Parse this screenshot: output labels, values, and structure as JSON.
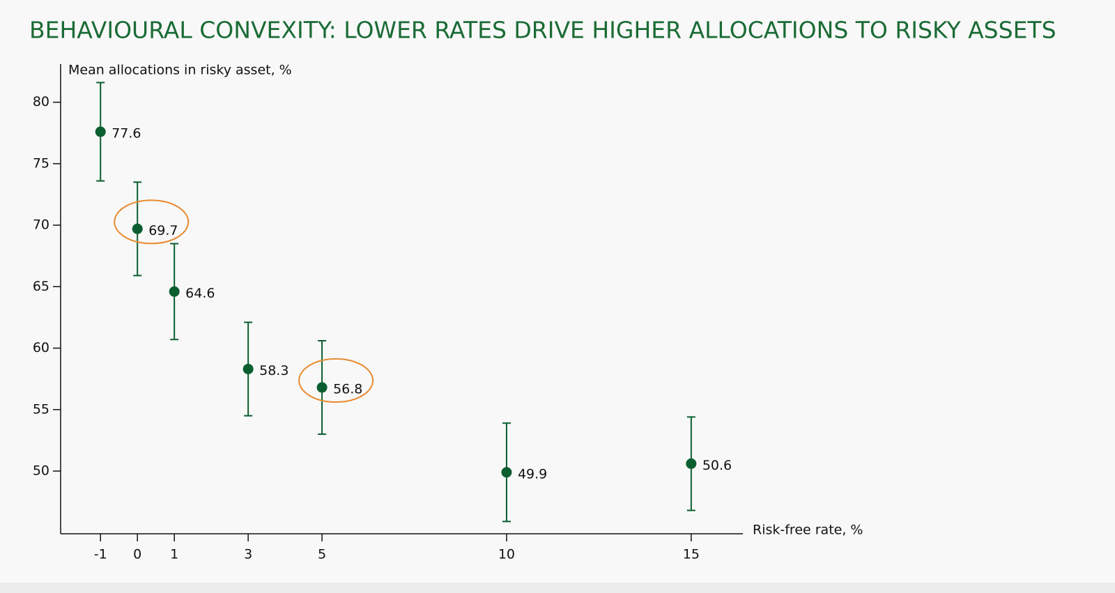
{
  "chart_data": {
    "type": "scatter",
    "title": "BEHAVIOURAL CONVEXITY: LOWER RATES DRIVE HIGHER ALLOCATIONS TO RISKY ASSETS",
    "ylabel": "Mean allocations in risky asset, %",
    "xlabel": "Risk-free rate, %",
    "x": [
      -1,
      0,
      1,
      3,
      5,
      10,
      15
    ],
    "values": [
      77.6,
      69.7,
      64.6,
      58.3,
      56.8,
      49.9,
      50.6
    ],
    "errors": [
      4.0,
      3.8,
      3.9,
      3.8,
      3.8,
      4.0,
      3.8
    ],
    "color": "#0b5e30",
    "highlight_color": "#e8892f",
    "highlighted_x": [
      0,
      5
    ],
    "xlim": [
      -2.08,
      16.4
    ],
    "ylim": [
      44.9,
      83.1
    ],
    "xticks": [
      -1,
      0,
      1,
      3,
      5,
      10,
      15
    ],
    "yticks": [
      50,
      55,
      60,
      65,
      70,
      75,
      80
    ]
  }
}
